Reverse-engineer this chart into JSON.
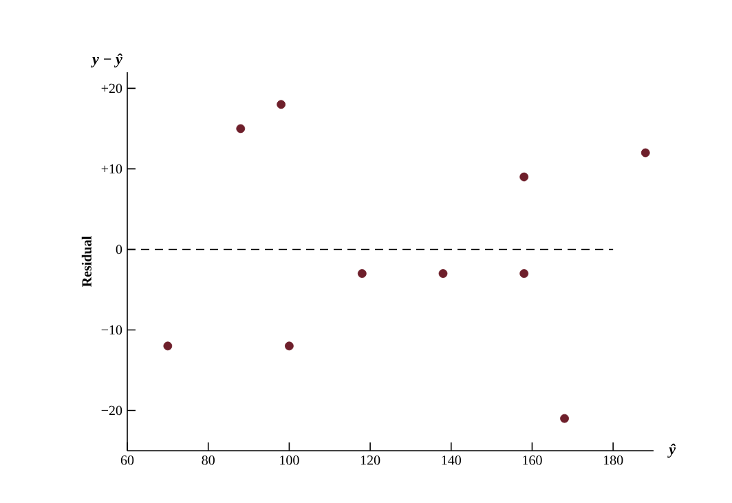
{
  "chart_data": {
    "type": "scatter",
    "xlabel": "ŷ",
    "ylabel": "Residual",
    "annotations": [
      "y − ŷ"
    ],
    "x": [
      70,
      88,
      98,
      100,
      118,
      138,
      158,
      158,
      168,
      188
    ],
    "values": [
      -12,
      15,
      18,
      -12,
      -3,
      -3,
      -3,
      9,
      -21,
      12
    ],
    "color": "#6e1f2b",
    "marker": "circle",
    "xlim": [
      60,
      190
    ],
    "ylim": [
      -25,
      22
    ],
    "xticks": [
      60,
      80,
      100,
      120,
      140,
      160,
      180
    ],
    "yticks": [
      {
        "value": -20,
        "label": "−20"
      },
      {
        "value": -10,
        "label": "−10"
      },
      {
        "value": 0,
        "label": "0"
      },
      {
        "value": 10,
        "label": "+10"
      },
      {
        "value": 20,
        "label": "+20"
      }
    ],
    "ref_lines": [
      {
        "axis": "y",
        "value": 0,
        "line_style": "dashed"
      }
    ],
    "grid": false
  }
}
